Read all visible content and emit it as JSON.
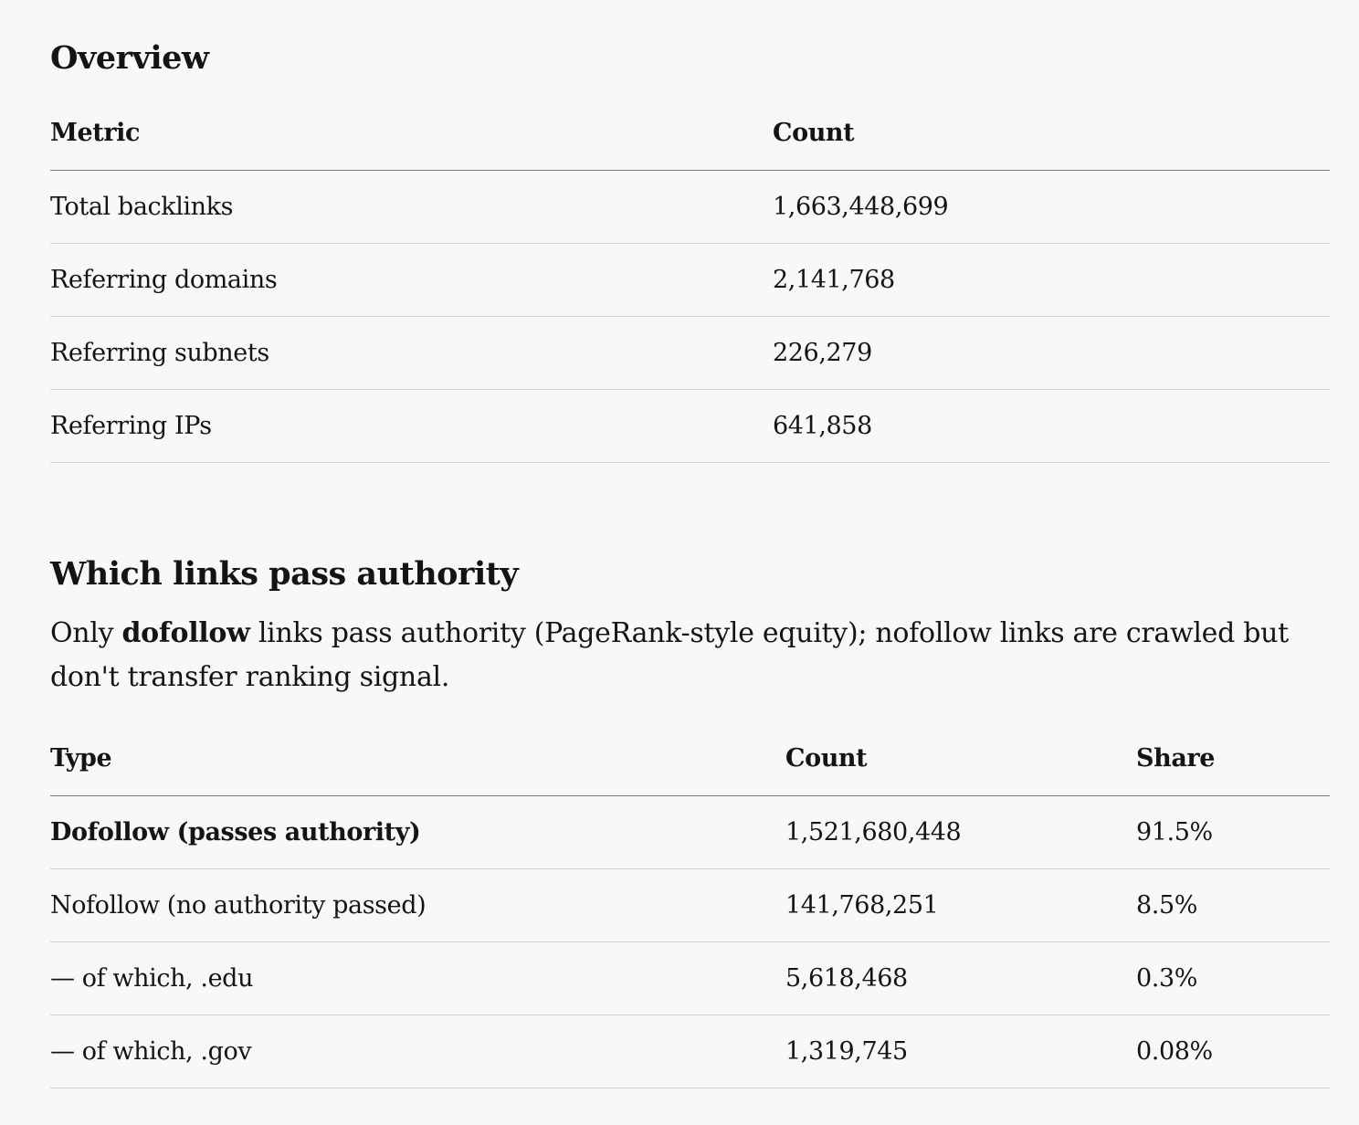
{
  "overview": {
    "title": "Overview",
    "headers": {
      "metric": "Metric",
      "count": "Count"
    },
    "rows": [
      {
        "metric": "Total backlinks",
        "count": "1,663,448,699"
      },
      {
        "metric": "Referring domains",
        "count": "2,141,768"
      },
      {
        "metric": "Referring subnets",
        "count": "226,279"
      },
      {
        "metric": "Referring IPs",
        "count": "641,858"
      }
    ]
  },
  "authority": {
    "title": "Which links pass authority",
    "intro": {
      "before": "Only ",
      "emphasis": "dofollow",
      "after": " links pass authority (PageRank-style equity); nofollow links are crawled but don't transfer ranking signal."
    },
    "headers": {
      "type": "Type",
      "count": "Count",
      "share": "Share"
    },
    "rows": [
      {
        "type": "Dofollow (passes authority)",
        "count": "1,521,680,448",
        "share": "91.5%"
      },
      {
        "type": "Nofollow (no authority passed)",
        "count": "141,768,251",
        "share": "8.5%"
      },
      {
        "type": "— of which, .edu",
        "count": "5,618,468",
        "share": "0.3%"
      },
      {
        "type": "— of which, .gov",
        "count": "1,319,745",
        "share": "0.08%"
      }
    ]
  }
}
